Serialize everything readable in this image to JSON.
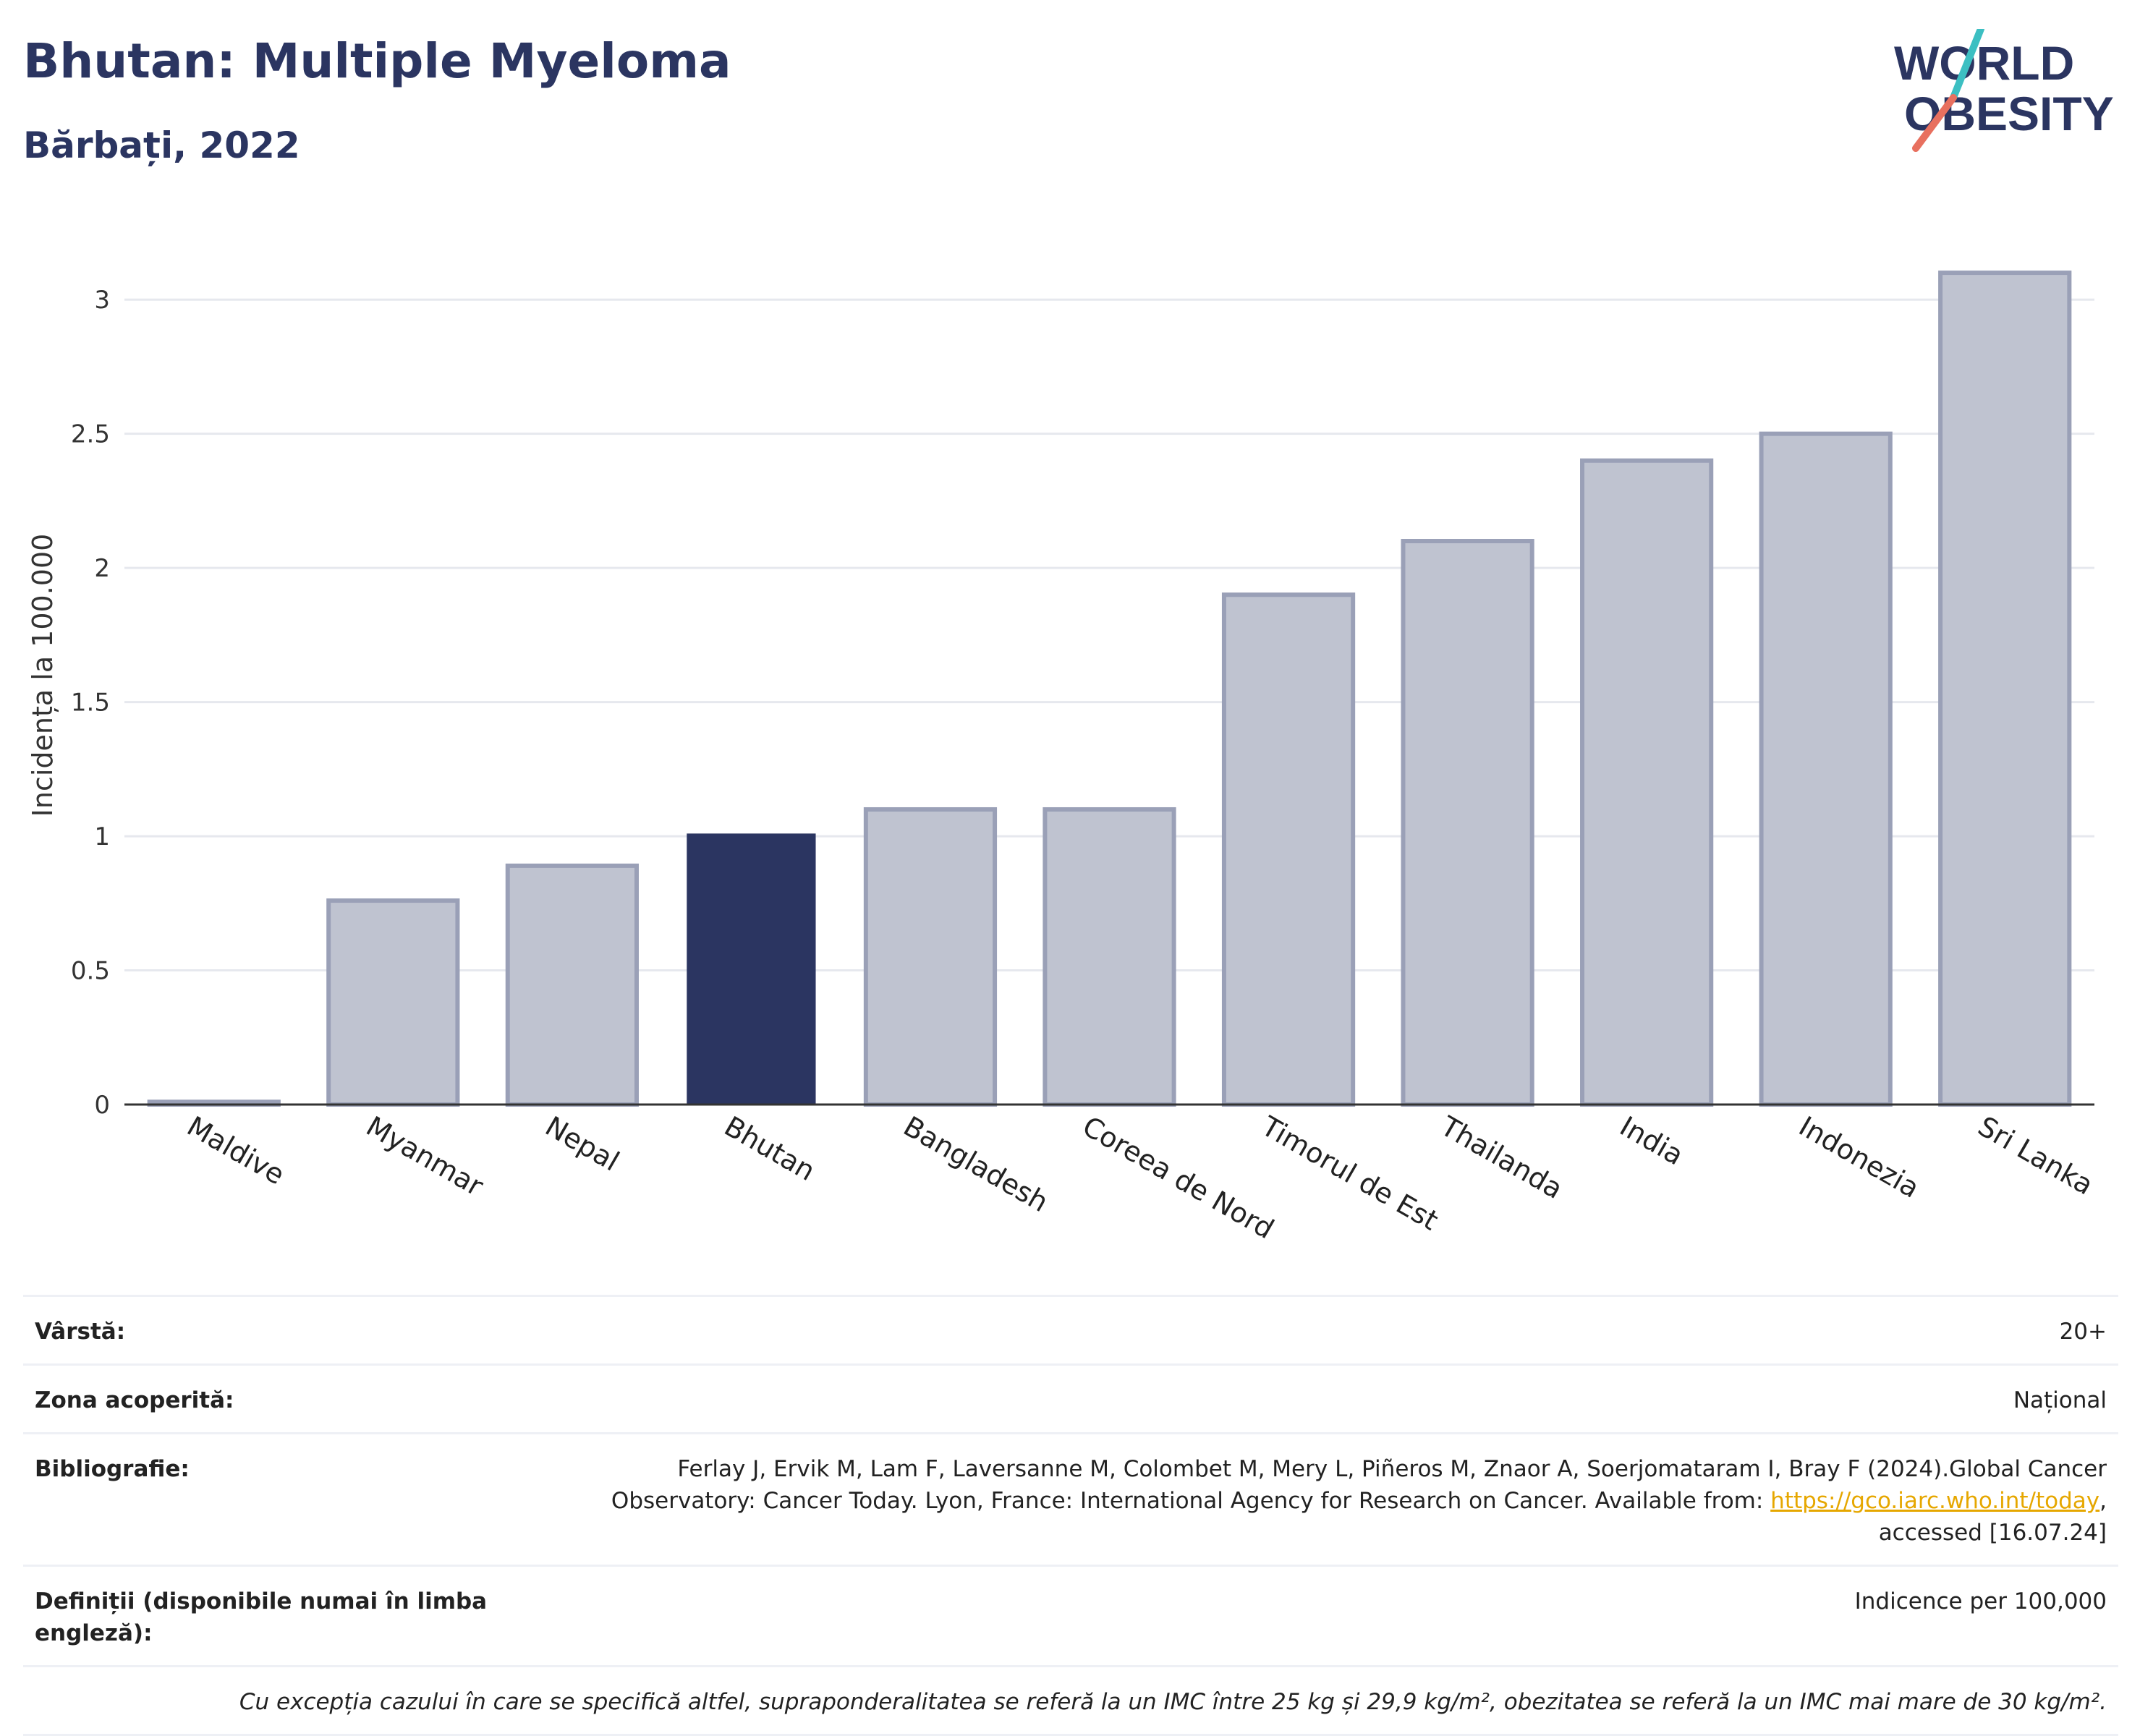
{
  "header": {
    "title": "Bhutan: Multiple Myeloma",
    "subtitle": "Bărbați, 2022",
    "logo_line1": "WORLD",
    "logo_line2": "OBESITY"
  },
  "colors": {
    "title": "#2b3561",
    "highlight_bar": "#2b3561",
    "other_bar": "#bfc3d0",
    "other_bar_border": "#9aa0b7",
    "logo_teal": "#3cbfc2",
    "logo_coral": "#e8705f",
    "link": "#e6a700"
  },
  "chart_data": {
    "type": "bar",
    "ylabel": "Incidența la 100.000",
    "xlabel": "",
    "ylim": [
      0,
      3.2
    ],
    "yticks": [
      0,
      0.5,
      1,
      1.5,
      2,
      2.5,
      3
    ],
    "ytick_labels": [
      "0",
      "0.5",
      "1",
      "1.5",
      "2",
      "2.5",
      "3"
    ],
    "grid": true,
    "highlight": "Bhutan",
    "categories": [
      "Maldive",
      "Myanmar",
      "Nepal",
      "Bhutan",
      "Bangladesh",
      "Coreea de Nord",
      "Timorul de Est",
      "Thailanda",
      "India",
      "Indonezia",
      "Sri Lanka"
    ],
    "values": [
      0.01,
      0.76,
      0.89,
      1.01,
      1.1,
      1.1,
      1.9,
      2.1,
      2.4,
      2.5,
      3.1
    ]
  },
  "info": {
    "rows": [
      {
        "key": "Vârstă:",
        "value": "20+"
      },
      {
        "key": "Zona acoperită:",
        "value": "Național"
      },
      {
        "key": "Bibliografie:",
        "value_pre": "Ferlay J, Ervik M, Lam F, Laversanne M, Colombet M, Mery L, Piñeros M, Znaor A, Soerjomataram I, Bray F (2024).Global Cancer Observatory: Cancer Today. Lyon, France: International Agency for Research on Cancer. Available from: ",
        "link": "https://gco.iarc.who.int/today",
        "value_post": ", accessed [16.07.24]"
      },
      {
        "key": "Definiții (disponibile numai în limba engleză):",
        "value": "Indicence per 100,000"
      }
    ],
    "note": "Cu excepția cazului în care se specifică altfel, supraponderalitatea se referă la un IMC între 25 kg și 29,9 kg/m², obezitatea se referă la un IMC mai mare de 30 kg/m²."
  }
}
